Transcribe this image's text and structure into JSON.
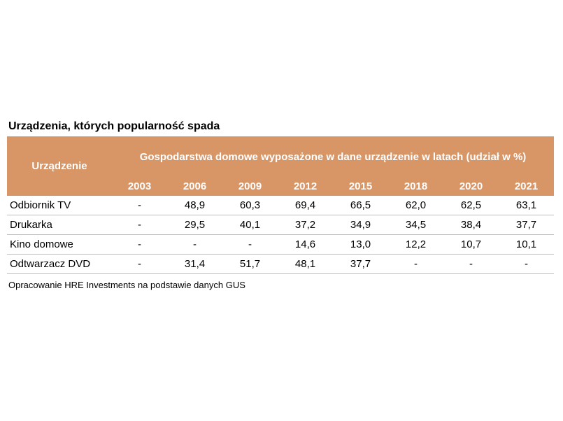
{
  "chart_data": {
    "type": "table",
    "title": "Urządzenia, których popularność spada",
    "row_header": "Urządzenie",
    "column_group_header": "Gospodarstwa domowe wyposażone w dane urządzenie w latach (udział w %)",
    "columns": [
      "2003",
      "2006",
      "2009",
      "2012",
      "2015",
      "2018",
      "2020",
      "2021"
    ],
    "rows": [
      {
        "name": "Odbiornik TV",
        "values": [
          "-",
          "48,9",
          "60,3",
          "69,4",
          "66,5",
          "62,0",
          "62,5",
          "63,1"
        ]
      },
      {
        "name": "Drukarka",
        "values": [
          "-",
          "29,5",
          "40,1",
          "37,2",
          "34,9",
          "34,5",
          "38,4",
          "37,7"
        ]
      },
      {
        "name": "Kino domowe",
        "values": [
          "-",
          "-",
          "-",
          "14,6",
          "13,0",
          "12,2",
          "10,7",
          "10,1"
        ]
      },
      {
        "name": "Odtwarzacz DVD",
        "values": [
          "-",
          "31,4",
          "51,7",
          "48,1",
          "37,7",
          "-",
          "-",
          "-"
        ]
      }
    ],
    "source": "Opracowanie HRE Investments na podstawie danych GUS"
  },
  "colors": {
    "header_background": "#d89566",
    "header_text": "#ffffff",
    "row_divider": "#bfbfbf"
  }
}
